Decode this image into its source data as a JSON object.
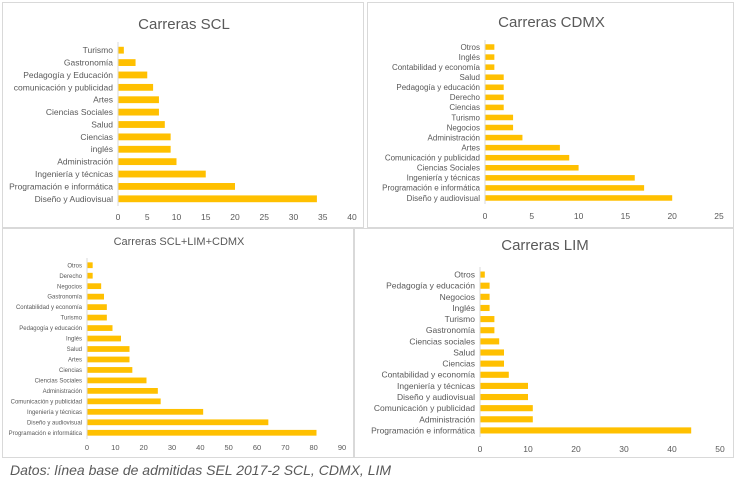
{
  "bar_color": "#ffc000",
  "text_color": "#595959",
  "caption": "Datos: línea base de admitidas SEL 2017-2 SCL, CDMX, LIM",
  "chart_data": [
    {
      "type": "bar",
      "orientation": "horizontal",
      "title": "Carreras SCL",
      "categories": [
        "Diseño y Audiovisual",
        "Programación e informática",
        "Ingeniería y técnicas",
        "Administración",
        "inglés",
        "Ciencias",
        "Salud",
        "Ciencias Sociales",
        "Artes",
        "comunicación y publicidad",
        "Pedagogía y Educación",
        "Gastronomía",
        "Turismo"
      ],
      "values": [
        34,
        20,
        15,
        10,
        9,
        9,
        8,
        7,
        7,
        6,
        5,
        3,
        1
      ],
      "xlim": [
        0,
        40
      ],
      "xticks": [
        "0",
        "5",
        "10",
        "15",
        "20",
        "25",
        "30",
        "35",
        "40"
      ],
      "grid": false
    },
    {
      "type": "bar",
      "orientation": "horizontal",
      "title": "Carreras CDMX",
      "categories": [
        "Diseño y audiovisual",
        "Programación e informática",
        "Ingeniería y técnicas",
        "Ciencias Sociales",
        "Comunicación y publicidad",
        "Artes",
        "Administración",
        "Negocios",
        "Turismo",
        "Ciencias",
        "Derecho",
        "Pedagogía y educación",
        "Salud",
        "Contabilidad y economía",
        "Inglés",
        "Otros"
      ],
      "values": [
        20,
        17,
        16,
        10,
        9,
        8,
        4,
        3,
        3,
        2,
        2,
        2,
        2,
        1,
        1,
        1
      ],
      "xlim": [
        0,
        25
      ],
      "xticks": [
        "0",
        "5",
        "10",
        "15",
        "20",
        "25"
      ],
      "grid": false
    },
    {
      "type": "bar",
      "orientation": "horizontal",
      "title": "Carreras SCL+LIM+CDMX",
      "categories": [
        "Programación e informática",
        "Diseño y audiovisual",
        "Ingeniería y técnicas",
        "Comunicación y publicidad",
        "Administración",
        "Ciencias Sociales",
        "Ciencias",
        "Artes",
        "Salud",
        "Inglés",
        "Pedagogía y educación",
        "Turismo",
        "Contabilidad y economía",
        "Gastronomía",
        "Negocios",
        "Derecho",
        "Otros"
      ],
      "values": [
        81,
        64,
        41,
        26,
        25,
        21,
        16,
        15,
        15,
        12,
        9,
        7,
        7,
        6,
        5,
        2,
        2
      ],
      "xlim": [
        0,
        90
      ],
      "xticks": [
        "0",
        "10",
        "20",
        "30",
        "40",
        "50",
        "60",
        "70",
        "80",
        "90"
      ],
      "grid": false
    },
    {
      "type": "bar",
      "orientation": "horizontal",
      "title": "Carreras LIM",
      "categories": [
        "Programación e informática",
        "Administración",
        "Comunicación y publicidad",
        "Diseño y audiovisual",
        "Ingeniería y técnicas",
        "Contabilidad y economía",
        "Ciencias",
        "Salud",
        "Ciencias sociales",
        "Gastronomía",
        "Turismo",
        "Inglés",
        "Negocios",
        "Pedagogía y educación",
        "Otros"
      ],
      "values": [
        44,
        11,
        11,
        10,
        10,
        6,
        5,
        5,
        4,
        3,
        3,
        2,
        2,
        2,
        1
      ],
      "xlim": [
        0,
        50
      ],
      "xticks": [
        "0",
        "10",
        "20",
        "30",
        "40",
        "50"
      ],
      "grid": false
    }
  ]
}
